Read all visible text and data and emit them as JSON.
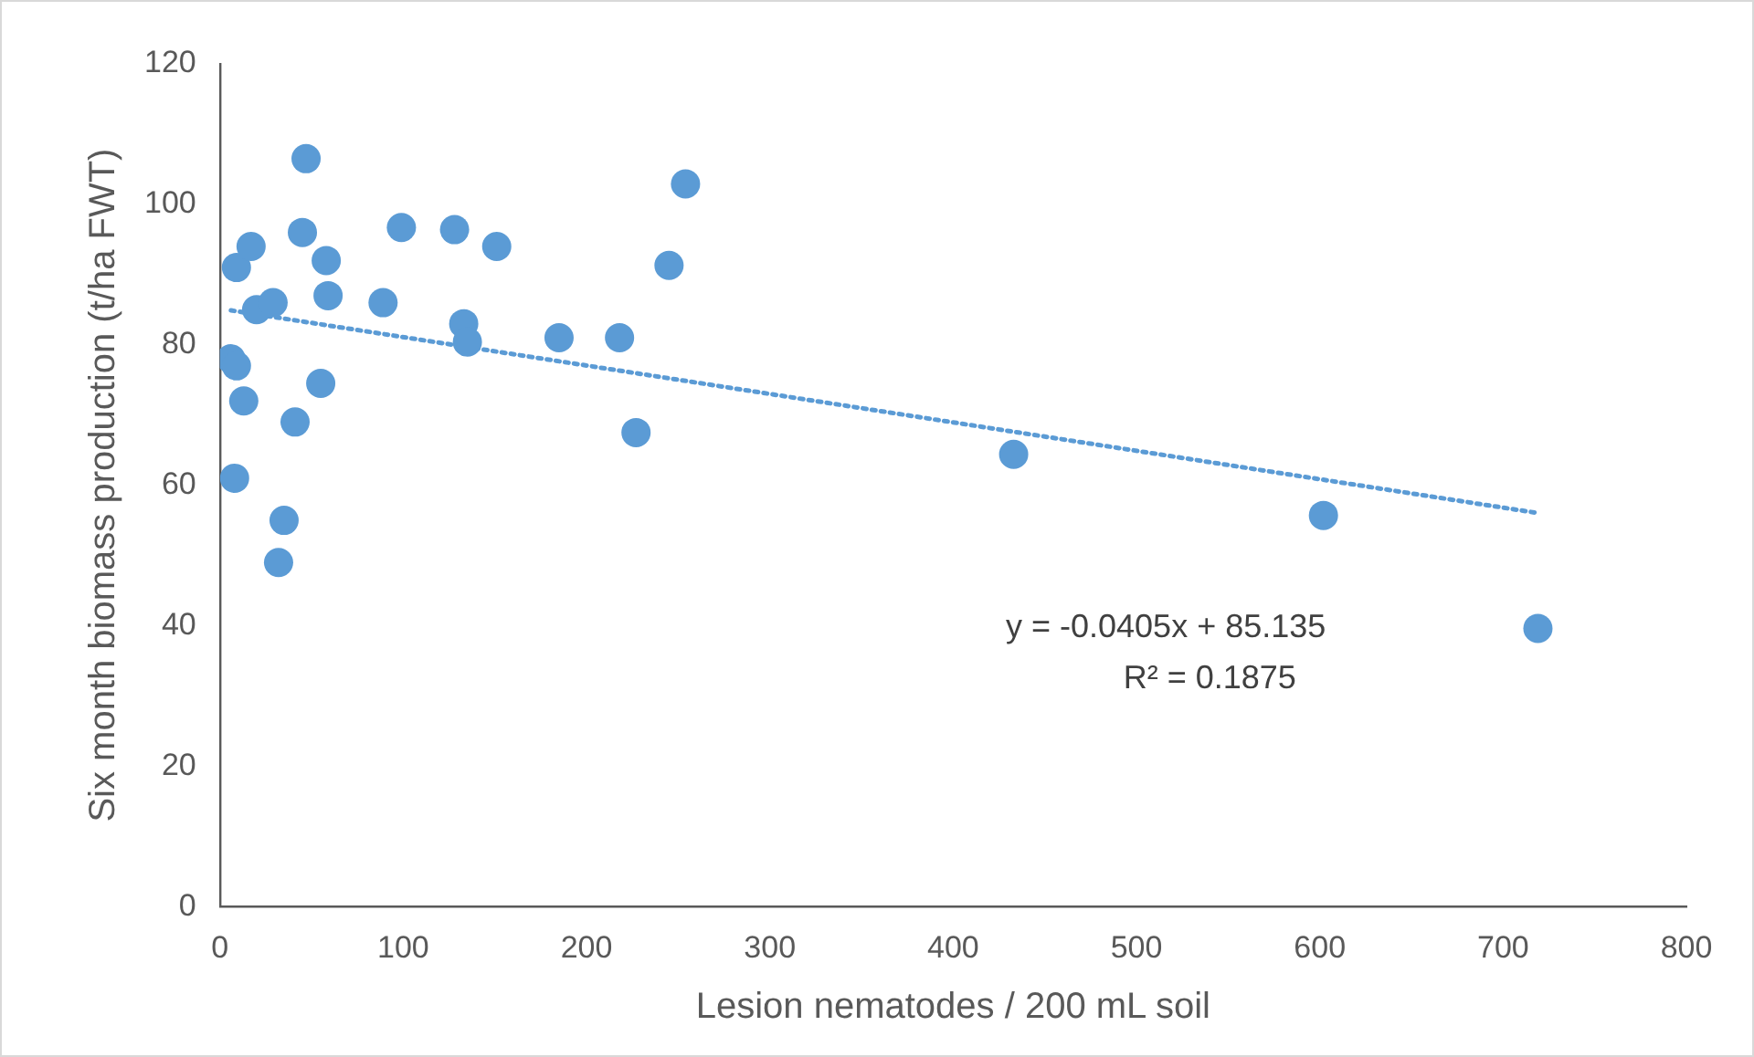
{
  "chart_data": {
    "type": "scatter",
    "xlabel": "Lesion nematodes / 200 mL soil",
    "ylabel": "Six month biomass production (t/ha FWT)",
    "x": [
      6,
      9,
      9,
      8,
      13,
      17,
      20,
      29,
      32,
      35,
      41,
      45,
      47,
      55,
      58,
      59,
      89,
      99,
      128,
      133,
      135,
      151,
      185,
      218,
      227,
      245,
      254,
      433,
      602,
      719
    ],
    "series": [
      {
        "color": "#5b9bd5",
        "values": [
          78,
          77,
          91,
          61,
          72,
          94,
          85,
          86,
          49,
          55,
          69,
          96,
          106.5,
          74.5,
          92,
          87,
          86,
          96.7,
          96.4,
          83,
          80.4,
          94,
          81,
          81,
          67.5,
          91.3,
          102.9,
          64.4,
          55.7,
          39.6
        ]
      },
      {
        "type": "line",
        "color": "#5b9bd5",
        "x": [
          6,
          720
        ],
        "values": [
          84.9,
          56.0
        ],
        "marker": "none",
        "line_style": "dotted"
      }
    ],
    "annotations": [
      "y = -0.0405x + 85.135",
      "R² = 0.1875"
    ],
    "xlim": [
      0,
      800
    ],
    "xticks": [
      0,
      100,
      200,
      300,
      400,
      500,
      600,
      700,
      800
    ],
    "ylim": [
      0,
      120
    ],
    "yticks": [
      0,
      20,
      40,
      60,
      80,
      100,
      120
    ],
    "grid": false,
    "legend": false,
    "marker": "circle"
  }
}
